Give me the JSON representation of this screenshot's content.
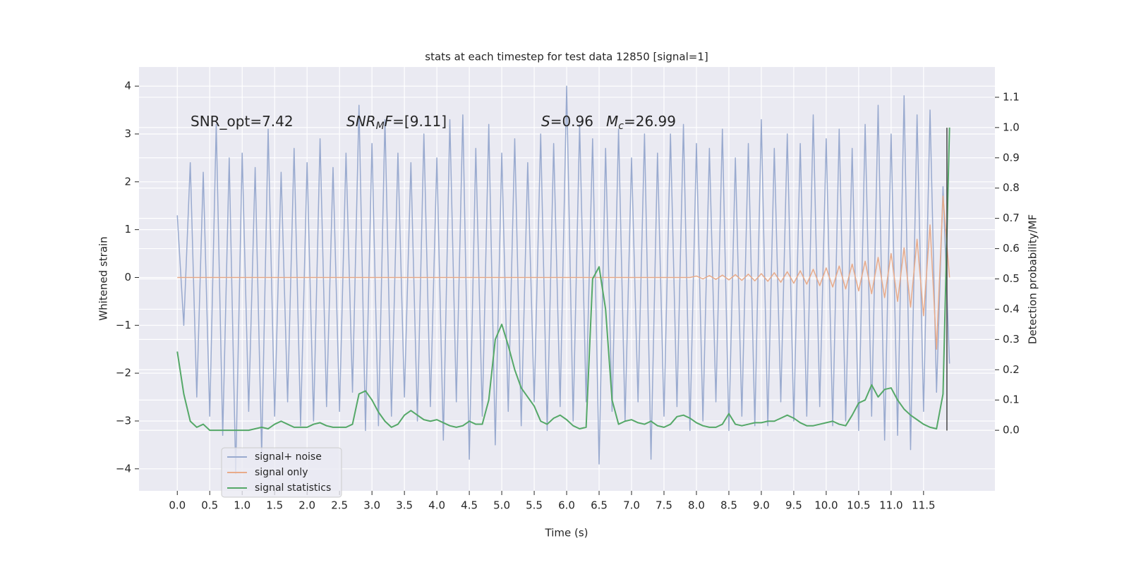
{
  "chart_data": {
    "type": "line",
    "title": "stats at each timestep for test data 12850 [signal=1]",
    "xlabel": "Time (s)",
    "ylabel": "Whitened strain",
    "y2label": "Detection probability/MF",
    "xlim": [
      -0.59,
      12.6
    ],
    "ylim": [
      -4.46,
      4.4
    ],
    "y2lim": [
      -0.2,
      1.2
    ],
    "xticks": [
      {
        "value": 0,
        "label": "0.0"
      },
      0.5,
      {
        "value": 1,
        "label": "1.0"
      },
      1.5,
      {
        "value": 2,
        "label": "2.0"
      },
      2.5,
      {
        "value": 3,
        "label": "3.0"
      },
      3.5,
      {
        "value": 4,
        "label": "4.0"
      },
      4.5,
      {
        "value": 5,
        "label": "5.0"
      },
      5.5,
      {
        "value": 6,
        "label": "6.0"
      },
      6.5,
      {
        "value": 7,
        "label": "7.0"
      },
      7.5,
      {
        "value": 8,
        "label": "8.0"
      },
      8.5,
      {
        "value": 9,
        "label": "9.0"
      },
      9.5,
      {
        "value": 10,
        "label": "10.0"
      },
      10.5,
      {
        "value": 11,
        "label": "11.0"
      },
      11.5
    ],
    "yticks": [
      {
        "value": -4,
        "label": "−4"
      },
      {
        "value": -3,
        "label": "−3"
      },
      {
        "value": -2,
        "label": "−2"
      },
      {
        "value": -1,
        "label": "−1"
      },
      0,
      1,
      2,
      3,
      4
    ],
    "y2ticks": [
      {
        "value": 0,
        "label": "0.0"
      },
      0.1,
      0.2,
      0.3,
      0.4,
      0.5,
      0.6,
      0.7,
      0.8,
      0.9,
      {
        "value": 1,
        "label": "1.0"
      },
      1.1
    ],
    "grid": true,
    "x": [
      0,
      0.1,
      0.2,
      0.3,
      0.4,
      0.5,
      0.6,
      0.7,
      0.8,
      0.9,
      1,
      1.1,
      1.2,
      1.3,
      1.4,
      1.5,
      1.6,
      1.7,
      1.8,
      1.9,
      2,
      2.1,
      2.2,
      2.3,
      2.4,
      2.5,
      2.6,
      2.7,
      2.8,
      2.9,
      3,
      3.1,
      3.2,
      3.3,
      3.4,
      3.5,
      3.6,
      3.7,
      3.8,
      3.9,
      4,
      4.1,
      4.2,
      4.3,
      4.4,
      4.5,
      4.6,
      4.7,
      4.8,
      4.9,
      5,
      5.1,
      5.2,
      5.3,
      5.4,
      5.5,
      5.6,
      5.7,
      5.8,
      5.9,
      6,
      6.1,
      6.2,
      6.3,
      6.4,
      6.5,
      6.6,
      6.7,
      6.8,
      6.9,
      7,
      7.1,
      7.2,
      7.3,
      7.4,
      7.5,
      7.6,
      7.7,
      7.8,
      7.9,
      8,
      8.1,
      8.2,
      8.3,
      8.4,
      8.5,
      8.6,
      8.7,
      8.8,
      8.9,
      9,
      9.1,
      9.2,
      9.3,
      9.4,
      9.5,
      9.6,
      9.7,
      9.8,
      9.9,
      10,
      10.1,
      10.2,
      10.3,
      10.4,
      10.5,
      10.6,
      10.7,
      10.8,
      10.9,
      11,
      11.1,
      11.2,
      11.3,
      11.4,
      11.5,
      11.6,
      11.7,
      11.8,
      11.9
    ],
    "series": [
      {
        "name": "signal+ noise",
        "color": "#99aacf",
        "values": [
          1.3,
          -1.0,
          2.4,
          -2.5,
          2.2,
          -2.9,
          3.2,
          -3.3,
          2.5,
          -4.1,
          2.6,
          -2.8,
          2.3,
          -3.7,
          3.1,
          -2.9,
          2.2,
          -2.6,
          2.7,
          -3.1,
          2.4,
          -3.0,
          2.9,
          -2.7,
          2.3,
          -2.8,
          2.6,
          -2.4,
          3.6,
          -3.2,
          2.8,
          -3.1,
          3.3,
          -2.9,
          2.6,
          -2.5,
          2.4,
          -3.0,
          3.0,
          -2.7,
          2.5,
          -3.4,
          3.3,
          -2.6,
          3.4,
          -3.8,
          2.7,
          -2.9,
          3.2,
          -3.5,
          2.6,
          -2.8,
          2.9,
          -3.1,
          2.4,
          -2.6,
          3.0,
          -3.2,
          2.8,
          -2.7,
          4.0,
          -3.0,
          3.2,
          -2.6,
          2.9,
          -3.9,
          2.7,
          -2.8,
          3.1,
          -3.0,
          2.5,
          -2.6,
          3.0,
          -3.8,
          2.6,
          -2.9,
          3.0,
          -2.7,
          3.2,
          -3.2,
          2.8,
          -3.0,
          2.7,
          -2.6,
          3.1,
          -3.2,
          2.5,
          -2.9,
          2.8,
          -3.1,
          3.3,
          -3.1,
          2.7,
          -2.6,
          3.0,
          -3.0,
          2.8,
          -2.9,
          3.4,
          -2.7,
          2.9,
          -3.1,
          3.1,
          -3.0,
          2.7,
          -3.2,
          3.2,
          -2.9,
          3.6,
          -3.4,
          3.0,
          -3.3,
          3.8,
          -3.6,
          3.4,
          -2.8,
          3.5,
          -2.4,
          1.9,
          -1.8
        ]
      },
      {
        "name": "signal only",
        "color": "#e8ab8a",
        "values": [
          0,
          0,
          0,
          0,
          0,
          0,
          0,
          0,
          0,
          0,
          0,
          0,
          0,
          0,
          0,
          0,
          0,
          0,
          0,
          0,
          0,
          0,
          0,
          0,
          0,
          0,
          0,
          0,
          0,
          0,
          0,
          0,
          0,
          0,
          0,
          0,
          0,
          0,
          0,
          0,
          0,
          0,
          0,
          0,
          0,
          0,
          0,
          0,
          0,
          0,
          0,
          0,
          0,
          0,
          0,
          0,
          0,
          0,
          0,
          0,
          0,
          0,
          0,
          0,
          0,
          0,
          0,
          0,
          0,
          0,
          0,
          0,
          0,
          0,
          0,
          0,
          0,
          0,
          0,
          0,
          0.03,
          -0.03,
          0.04,
          -0.04,
          0.05,
          -0.05,
          0.06,
          -0.06,
          0.07,
          -0.07,
          0.08,
          -0.08,
          0.1,
          -0.1,
          0.12,
          -0.12,
          0.14,
          -0.14,
          0.17,
          -0.17,
          0.2,
          -0.2,
          0.24,
          -0.24,
          0.28,
          -0.28,
          0.34,
          -0.34,
          0.42,
          -0.42,
          0.5,
          -0.5,
          0.62,
          -0.62,
          0.8,
          -0.8,
          1.1,
          -1.5,
          1.7,
          0
        ]
      },
      {
        "name": "signal statistics",
        "color": "#55a868",
        "axis": "y2",
        "values": [
          0.26,
          0.12,
          0.03,
          0.01,
          0.02,
          0.0,
          0.0,
          0.0,
          0.0,
          0.0,
          0.0,
          0.0,
          0.005,
          0.01,
          0.005,
          0.02,
          0.03,
          0.02,
          0.01,
          0.01,
          0.01,
          0.02,
          0.025,
          0.015,
          0.01,
          0.01,
          0.01,
          0.02,
          0.12,
          0.13,
          0.1,
          0.06,
          0.03,
          0.01,
          0.02,
          0.05,
          0.065,
          0.05,
          0.035,
          0.03,
          0.035,
          0.025,
          0.015,
          0.01,
          0.015,
          0.03,
          0.02,
          0.02,
          0.1,
          0.3,
          0.35,
          0.28,
          0.2,
          0.14,
          0.11,
          0.08,
          0.03,
          0.02,
          0.04,
          0.05,
          0.035,
          0.015,
          0.005,
          0.01,
          0.5,
          0.54,
          0.4,
          0.1,
          0.02,
          0.03,
          0.035,
          0.025,
          0.02,
          0.03,
          0.015,
          0.01,
          0.02,
          0.045,
          0.05,
          0.04,
          0.025,
          0.015,
          0.01,
          0.01,
          0.02,
          0.055,
          0.02,
          0.015,
          0.02,
          0.025,
          0.025,
          0.03,
          0.03,
          0.04,
          0.05,
          0.04,
          0.025,
          0.015,
          0.015,
          0.02,
          0.025,
          0.03,
          0.02,
          0.015,
          0.05,
          0.09,
          0.1,
          0.15,
          0.11,
          0.135,
          0.14,
          0.1,
          0.07,
          0.05,
          0.035,
          0.02,
          0.01,
          0.005,
          0.12,
          1.0
        ]
      }
    ],
    "vline": {
      "x": 11.86,
      "ymin": -3.2,
      "ymax": 3.13,
      "color": "#444444"
    },
    "annotations": [
      {
        "parts": [
          {
            "text": "SNR_opt=7.42"
          }
        ]
      },
      {
        "parts": [
          {
            "text": "SNR",
            "italic": true
          },
          {
            "text": "M",
            "italic": true,
            "sub": true
          },
          {
            "text": "F",
            "italic": true
          },
          {
            "text": "=[9.11]"
          }
        ]
      },
      {
        "parts": [
          {
            "text": "S",
            "italic": true
          },
          {
            "text": "=0.96"
          }
        ]
      },
      {
        "parts": [
          {
            "text": "M",
            "italic": true
          },
          {
            "text": "c",
            "italic": true,
            "sub": true
          },
          {
            "text": "=26.99"
          }
        ]
      }
    ]
  }
}
